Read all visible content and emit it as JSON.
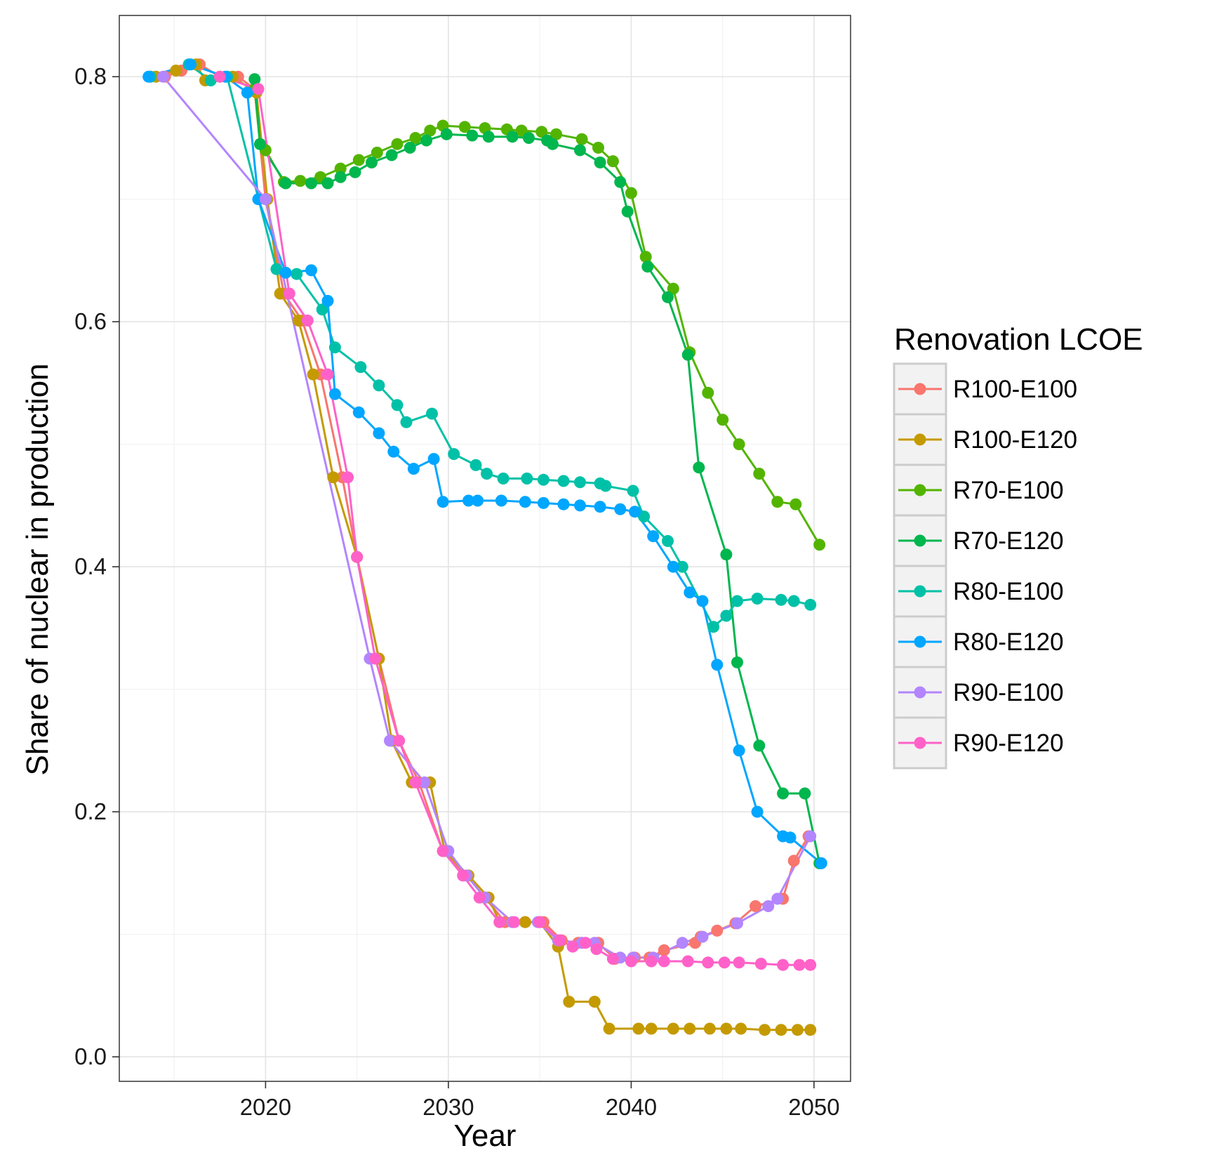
{
  "chart_data": {
    "type": "line",
    "xlabel": "Year",
    "ylabel": "Share of nuclear in production",
    "xlim": [
      2012,
      2052
    ],
    "ylim": [
      -0.02,
      0.85
    ],
    "x_ticks": [
      2020,
      2030,
      2040,
      2050
    ],
    "y_ticks": [
      0.0,
      0.2,
      0.4,
      0.6,
      0.8
    ],
    "x_tick_labels": [
      "2020",
      "2030",
      "2040",
      "2050"
    ],
    "y_tick_labels": [
      "0.0",
      "0.2",
      "0.4",
      "0.6",
      "0.8"
    ],
    "grid": true,
    "legend": {
      "title": "Renovation LCOE",
      "position": "right"
    },
    "series": [
      {
        "name": "R100-E100",
        "color": "#F8766D",
        "points": [
          [
            2013.7,
            0.8
          ],
          [
            2014.5,
            0.8
          ],
          [
            2015.4,
            0.805
          ],
          [
            2016.4,
            0.81
          ],
          [
            2017.5,
            0.8
          ],
          [
            2018.5,
            0.8
          ],
          [
            2019.4,
            0.79
          ],
          [
            2020.0,
            0.7
          ],
          [
            2021.0,
            0.623
          ],
          [
            2022.0,
            0.601
          ],
          [
            2023.0,
            0.557
          ],
          [
            2024.2,
            0.473
          ],
          [
            2025.0,
            0.408
          ],
          [
            2026.2,
            0.325
          ],
          [
            2027.3,
            0.258
          ],
          [
            2028.4,
            0.224
          ],
          [
            2029.7,
            0.168
          ],
          [
            2031.0,
            0.148
          ],
          [
            2032.0,
            0.13
          ],
          [
            2033.1,
            0.11
          ],
          [
            2034.2,
            0.11
          ],
          [
            2035.2,
            0.11
          ],
          [
            2036.2,
            0.095
          ],
          [
            2037.1,
            0.093
          ],
          [
            2038.2,
            0.093
          ],
          [
            2039.1,
            0.08
          ],
          [
            2040.2,
            0.081
          ],
          [
            2041.0,
            0.081
          ],
          [
            2041.8,
            0.087
          ],
          [
            2043.5,
            0.093
          ],
          [
            2043.8,
            0.098
          ],
          [
            2044.7,
            0.103
          ],
          [
            2045.7,
            0.109
          ],
          [
            2046.8,
            0.123
          ],
          [
            2048.3,
            0.129
          ],
          [
            2048.9,
            0.16
          ],
          [
            2049.7,
            0.18
          ]
        ]
      },
      {
        "name": "R100-E120",
        "color": "#C49A00",
        "points": [
          [
            2014.0,
            0.8
          ],
          [
            2015.1,
            0.805
          ],
          [
            2016.2,
            0.81
          ],
          [
            2016.7,
            0.797
          ],
          [
            2018.2,
            0.8
          ],
          [
            2019.5,
            0.787
          ],
          [
            2020.1,
            0.7
          ],
          [
            2020.8,
            0.623
          ],
          [
            2021.8,
            0.601
          ],
          [
            2022.6,
            0.557
          ],
          [
            2023.7,
            0.473
          ],
          [
            2025.0,
            0.408
          ],
          [
            2026.2,
            0.325
          ],
          [
            2026.9,
            0.258
          ],
          [
            2028.0,
            0.224
          ],
          [
            2029.0,
            0.224
          ],
          [
            2029.8,
            0.168
          ],
          [
            2031.1,
            0.148
          ],
          [
            2032.2,
            0.13
          ],
          [
            2032.8,
            0.11
          ],
          [
            2034.2,
            0.11
          ],
          [
            2035.0,
            0.11
          ],
          [
            2036.0,
            0.09
          ],
          [
            2036.6,
            0.045
          ],
          [
            2038.0,
            0.045
          ],
          [
            2038.8,
            0.023
          ],
          [
            2040.4,
            0.023
          ],
          [
            2041.1,
            0.023
          ],
          [
            2042.3,
            0.023
          ],
          [
            2043.2,
            0.023
          ],
          [
            2044.3,
            0.023
          ],
          [
            2045.2,
            0.023
          ],
          [
            2046.0,
            0.023
          ],
          [
            2047.3,
            0.022
          ],
          [
            2048.2,
            0.022
          ],
          [
            2049.1,
            0.022
          ],
          [
            2049.8,
            0.022
          ]
        ]
      },
      {
        "name": "R70-E100",
        "color": "#53B400",
        "points": [
          [
            2019.4,
            0.79
          ],
          [
            2019.7,
            0.745
          ],
          [
            2020.0,
            0.74
          ],
          [
            2021.0,
            0.714
          ],
          [
            2021.9,
            0.715
          ],
          [
            2023.0,
            0.718
          ],
          [
            2024.1,
            0.725
          ],
          [
            2025.1,
            0.732
          ],
          [
            2026.1,
            0.738
          ],
          [
            2027.2,
            0.745
          ],
          [
            2028.2,
            0.75
          ],
          [
            2029.0,
            0.756
          ],
          [
            2029.7,
            0.76
          ],
          [
            2030.9,
            0.759
          ],
          [
            2032.0,
            0.758
          ],
          [
            2033.2,
            0.757
          ],
          [
            2034.0,
            0.756
          ],
          [
            2035.1,
            0.755
          ],
          [
            2035.9,
            0.753
          ],
          [
            2037.3,
            0.749
          ],
          [
            2038.2,
            0.742
          ],
          [
            2039.0,
            0.731
          ],
          [
            2040.0,
            0.705
          ],
          [
            2040.8,
            0.653
          ],
          [
            2042.3,
            0.627
          ],
          [
            2043.2,
            0.575
          ],
          [
            2044.2,
            0.542
          ],
          [
            2045.0,
            0.52
          ],
          [
            2045.9,
            0.5
          ],
          [
            2047.0,
            0.476
          ],
          [
            2048.0,
            0.453
          ],
          [
            2049.0,
            0.451
          ],
          [
            2050.3,
            0.418
          ]
        ]
      },
      {
        "name": "R70-E120",
        "color": "#00B64E",
        "points": [
          [
            2019.4,
            0.798
          ],
          [
            2019.7,
            0.745
          ],
          [
            2021.1,
            0.713
          ],
          [
            2022.5,
            0.713
          ],
          [
            2023.4,
            0.713
          ],
          [
            2024.1,
            0.718
          ],
          [
            2024.9,
            0.722
          ],
          [
            2025.8,
            0.73
          ],
          [
            2026.9,
            0.736
          ],
          [
            2027.9,
            0.742
          ],
          [
            2028.8,
            0.748
          ],
          [
            2029.9,
            0.753
          ],
          [
            2031.3,
            0.752
          ],
          [
            2032.2,
            0.751
          ],
          [
            2033.5,
            0.751
          ],
          [
            2034.4,
            0.75
          ],
          [
            2035.4,
            0.748
          ],
          [
            2035.7,
            0.745
          ],
          [
            2037.2,
            0.74
          ],
          [
            2038.3,
            0.73
          ],
          [
            2039.4,
            0.714
          ],
          [
            2039.8,
            0.69
          ],
          [
            2040.9,
            0.645
          ],
          [
            2042.0,
            0.62
          ],
          [
            2043.1,
            0.573
          ],
          [
            2043.7,
            0.481
          ],
          [
            2045.2,
            0.41
          ],
          [
            2045.8,
            0.322
          ],
          [
            2047.0,
            0.254
          ],
          [
            2048.3,
            0.215
          ],
          [
            2049.5,
            0.215
          ],
          [
            2050.3,
            0.158
          ]
        ]
      },
      {
        "name": "R80-E100",
        "color": "#00C1A7",
        "points": [
          [
            2013.7,
            0.8
          ],
          [
            2015.8,
            0.81
          ],
          [
            2017.0,
            0.797
          ],
          [
            2017.9,
            0.8
          ],
          [
            2020.6,
            0.643
          ],
          [
            2021.7,
            0.639
          ],
          [
            2023.1,
            0.61
          ],
          [
            2023.8,
            0.579
          ],
          [
            2025.2,
            0.563
          ],
          [
            2026.2,
            0.548
          ],
          [
            2027.2,
            0.532
          ],
          [
            2027.7,
            0.518
          ],
          [
            2029.1,
            0.525
          ],
          [
            2030.3,
            0.492
          ],
          [
            2031.5,
            0.483
          ],
          [
            2032.1,
            0.476
          ],
          [
            2033.0,
            0.472
          ],
          [
            2034.3,
            0.472
          ],
          [
            2035.2,
            0.471
          ],
          [
            2036.3,
            0.47
          ],
          [
            2037.2,
            0.469
          ],
          [
            2038.3,
            0.468
          ],
          [
            2038.6,
            0.466
          ],
          [
            2040.1,
            0.462
          ],
          [
            2040.7,
            0.441
          ],
          [
            2042.0,
            0.421
          ],
          [
            2042.8,
            0.4
          ],
          [
            2044.5,
            0.351
          ],
          [
            2045.2,
            0.36
          ],
          [
            2045.8,
            0.372
          ],
          [
            2046.9,
            0.374
          ],
          [
            2048.2,
            0.373
          ],
          [
            2048.9,
            0.372
          ],
          [
            2049.8,
            0.369
          ]
        ]
      },
      {
        "name": "R80-E120",
        "color": "#00A6FF",
        "points": [
          [
            2013.6,
            0.8
          ],
          [
            2015.9,
            0.81
          ],
          [
            2017.8,
            0.8
          ],
          [
            2019.0,
            0.787
          ],
          [
            2019.6,
            0.7
          ],
          [
            2021.1,
            0.64
          ],
          [
            2022.5,
            0.642
          ],
          [
            2023.4,
            0.617
          ],
          [
            2023.8,
            0.541
          ],
          [
            2025.1,
            0.526
          ],
          [
            2026.2,
            0.509
          ],
          [
            2027.0,
            0.494
          ],
          [
            2028.1,
            0.48
          ],
          [
            2029.2,
            0.488
          ],
          [
            2029.7,
            0.453
          ],
          [
            2031.1,
            0.454
          ],
          [
            2031.6,
            0.454
          ],
          [
            2032.9,
            0.454
          ],
          [
            2034.2,
            0.453
          ],
          [
            2035.2,
            0.452
          ],
          [
            2036.3,
            0.451
          ],
          [
            2037.2,
            0.45
          ],
          [
            2038.3,
            0.449
          ],
          [
            2039.4,
            0.447
          ],
          [
            2040.2,
            0.445
          ],
          [
            2041.2,
            0.425
          ],
          [
            2042.3,
            0.4
          ],
          [
            2043.2,
            0.379
          ],
          [
            2043.9,
            0.372
          ],
          [
            2044.7,
            0.32
          ],
          [
            2045.9,
            0.25
          ],
          [
            2046.9,
            0.2
          ],
          [
            2048.3,
            0.18
          ],
          [
            2048.7,
            0.179
          ],
          [
            2050.4,
            0.158
          ]
        ]
      },
      {
        "name": "R90-E100",
        "color": "#B385FF",
        "points": [
          [
            2014.4,
            0.8
          ],
          [
            2020.0,
            0.7
          ],
          [
            2025.7,
            0.325
          ],
          [
            2026.8,
            0.258
          ],
          [
            2028.7,
            0.224
          ],
          [
            2030.0,
            0.168
          ],
          [
            2031.0,
            0.148
          ],
          [
            2032.0,
            0.13
          ],
          [
            2033.5,
            0.11
          ],
          [
            2034.9,
            0.11
          ],
          [
            2036.0,
            0.095
          ],
          [
            2037.3,
            0.093
          ],
          [
            2038.0,
            0.093
          ],
          [
            2039.4,
            0.081
          ],
          [
            2040.1,
            0.081
          ],
          [
            2041.2,
            0.081
          ],
          [
            2042.8,
            0.093
          ],
          [
            2043.9,
            0.098
          ],
          [
            2045.8,
            0.109
          ],
          [
            2047.5,
            0.123
          ],
          [
            2048.0,
            0.129
          ],
          [
            2049.8,
            0.18
          ]
        ]
      },
      {
        "name": "R90-E120",
        "color": "#FF61C9",
        "points": [
          [
            2017.5,
            0.8
          ],
          [
            2019.6,
            0.79
          ],
          [
            2021.3,
            0.623
          ],
          [
            2022.3,
            0.601
          ],
          [
            2023.4,
            0.557
          ],
          [
            2024.5,
            0.473
          ],
          [
            2025.0,
            0.408
          ],
          [
            2026.0,
            0.325
          ],
          [
            2027.3,
            0.258
          ],
          [
            2028.2,
            0.224
          ],
          [
            2029.7,
            0.168
          ],
          [
            2030.8,
            0.148
          ],
          [
            2031.7,
            0.13
          ],
          [
            2032.8,
            0.11
          ],
          [
            2033.6,
            0.11
          ],
          [
            2035.0,
            0.11
          ],
          [
            2036.1,
            0.095
          ],
          [
            2036.8,
            0.09
          ],
          [
            2037.5,
            0.093
          ],
          [
            2038.1,
            0.088
          ],
          [
            2039.0,
            0.08
          ],
          [
            2040.0,
            0.078
          ],
          [
            2041.1,
            0.078
          ],
          [
            2041.8,
            0.078
          ],
          [
            2043.1,
            0.078
          ],
          [
            2044.2,
            0.077
          ],
          [
            2045.1,
            0.077
          ],
          [
            2045.9,
            0.077
          ],
          [
            2047.1,
            0.076
          ],
          [
            2048.3,
            0.075
          ],
          [
            2049.2,
            0.075
          ],
          [
            2049.8,
            0.075
          ]
        ]
      }
    ]
  }
}
